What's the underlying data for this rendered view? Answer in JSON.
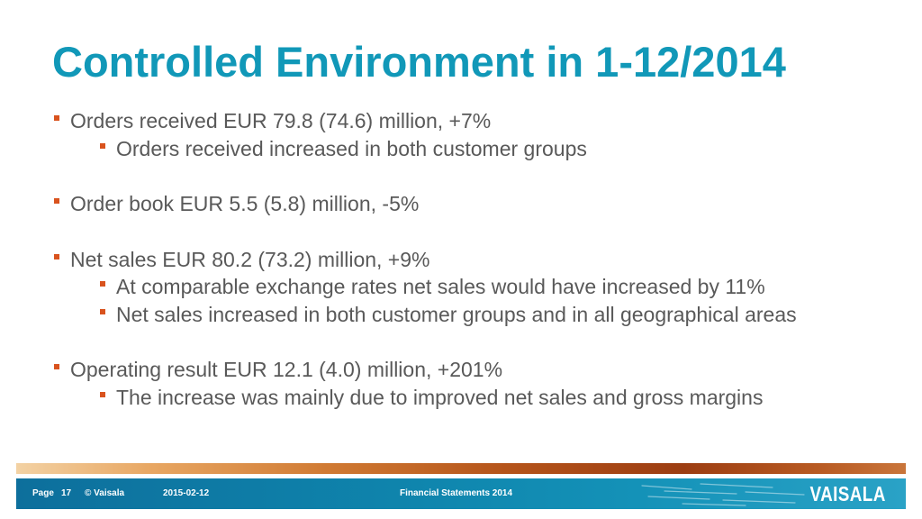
{
  "slide": {
    "title": "Controlled Environment in 1-12/2014",
    "bullets": [
      {
        "text": "Orders received EUR 79.8 (74.6) million, +7%"
      },
      {
        "text": "Orders received increased in both customer groups"
      },
      {
        "text": "Order book EUR 5.5 (5.8) million, -5%"
      },
      {
        "text": "Net sales EUR 80.2 (73.2) million, +9%"
      },
      {
        "text": "At comparable exchange rates net sales would have increased by 11%"
      },
      {
        "text": "Net sales increased in both customer groups and in all geographical areas"
      },
      {
        "text": "Operating result EUR 12.1 (4.0) million, +201%"
      },
      {
        "text": "The increase was mainly due to improved net sales and gross margins"
      }
    ]
  },
  "footer": {
    "page_label": "Page",
    "page_number": "17",
    "copyright": "© Vaisala",
    "date": "2015-02-12",
    "document_title": "Financial Statements 2014",
    "logo_text": "VAISALA"
  },
  "colors": {
    "title": "#1198b8",
    "body_text": "#595959",
    "bullet": "#d9531e",
    "footer_bar": "#0f85ad"
  }
}
